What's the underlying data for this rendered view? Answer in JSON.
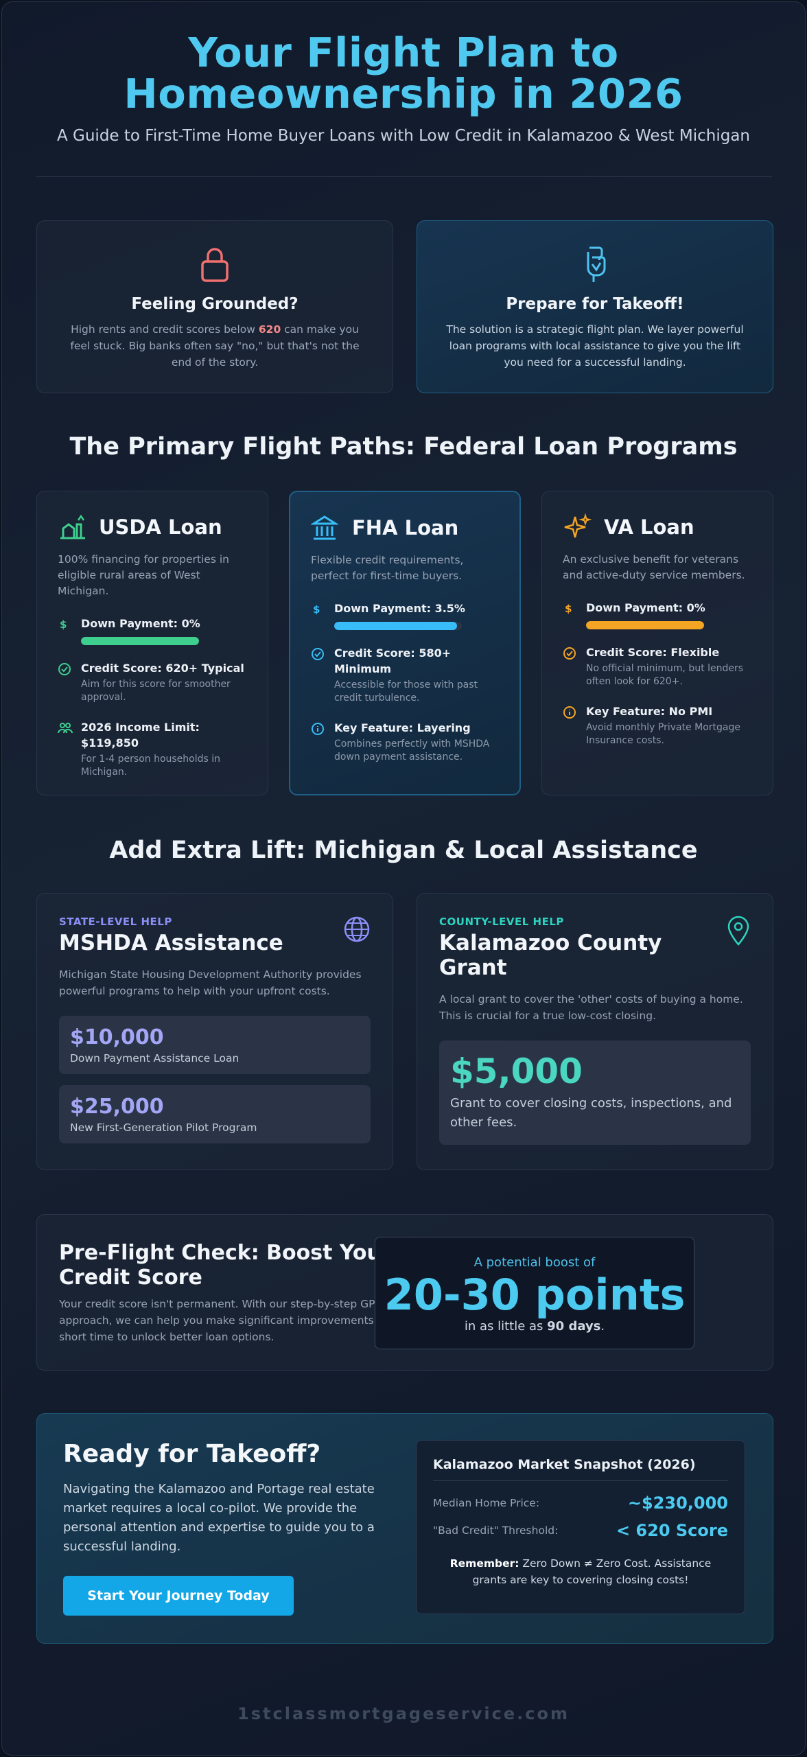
{
  "hero": {
    "title": "Your Flight Plan to Homeownership in 2026",
    "subtitle": "A Guide to First-Time Home Buyer Loans with Low Credit in Kalamazoo & West Michigan"
  },
  "intro": {
    "grounded": {
      "title": "Feeling Grounded?",
      "text_before": "High rents and credit scores below ",
      "highlight": "620",
      "text_after": " can make you feel stuck. Big banks often say \"no,\" but that's not the end of the story.",
      "icon": "lock-icon"
    },
    "takeoff": {
      "title": "Prepare for Takeoff!",
      "text": "The solution is a strategic flight plan. We layer powerful loan programs with local assistance to give you the lift you need for a successful landing.",
      "icon": "hand-icon"
    }
  },
  "federal": {
    "title": "The Primary Flight Paths: Federal Loan Programs",
    "usda": {
      "name": "USDA Loan",
      "desc": "100% financing for properties in eligible rural areas of West Michigan.",
      "color": "#3ecf8e",
      "down_payment": "Down Payment: 0%",
      "down_fill": 1.0,
      "credit_title": "Credit Score: 620+ Typical",
      "credit_sub": "Aim for this score for smoother approval.",
      "income_title": "2026 Income Limit: $119,850",
      "income_sub": "For 1-4 person households in Michigan."
    },
    "fha": {
      "name": "FHA Loan",
      "desc": "Flexible credit requirements, perfect for first-time buyers.",
      "color": "#38bdf8",
      "down_payment": "Down Payment: 3.5%",
      "down_fill": 0.965,
      "credit_title": "Credit Score: 580+ Minimum",
      "credit_sub": "Accessible for those with past credit turbulence.",
      "key_title": "Key Feature: Layering",
      "key_sub": "Combines perfectly with MSHDA down payment assistance."
    },
    "va": {
      "name": "VA Loan",
      "desc": "An exclusive benefit for veterans and active-duty service members.",
      "color": "#f5a524",
      "down_payment": "Down Payment: 0%",
      "down_fill": 1.0,
      "credit_title": "Credit Score: Flexible",
      "credit_sub": "No official minimum, but lenders often look for 620+.",
      "key_title": "Key Feature: No PMI",
      "key_sub": "Avoid monthly Private Mortgage Insurance costs."
    }
  },
  "assistance": {
    "title": "Add Extra Lift: Michigan & Local Assistance",
    "mshda": {
      "tag": "STATE-LEVEL HELP",
      "name": "MSHDA Assistance",
      "desc": "Michigan State Housing Development Authority provides powerful programs to help with your upfront costs.",
      "amount1": "$10,000",
      "label1": "Down Payment Assistance Loan",
      "amount2": "$25,000",
      "label2": "New First-Generation Pilot Program",
      "color": "#8b8ff5"
    },
    "county": {
      "tag": "COUNTY-LEVEL HELP",
      "name": "Kalamazoo County Grant",
      "desc": "A local grant to cover the 'other' costs of buying a home. This is crucial for a true low-cost closing.",
      "amount": "$5,000",
      "label": "Grant to cover closing costs, inspections, and other fees.",
      "color": "#2dd4bf"
    }
  },
  "credit": {
    "title": "Pre-Flight Check: Boost Your Credit Score",
    "desc": "Your credit score isn't permanent. With our step-by-step GPS approach, we can help you make significant improvements in a short time to unlock better loan options.",
    "boost_label": "A potential boost of",
    "boost_value": "20-30 points",
    "boost_pre": "in as little as ",
    "boost_days": "90 days",
    "boost_post": "."
  },
  "cta": {
    "title": "Ready for Takeoff?",
    "desc": "Navigating the Kalamazoo and Portage real estate market requires a local co-pilot. We provide the personal attention and expertise to guide you to a successful landing.",
    "button": "Start Your Journey Today",
    "snapshot": {
      "title": "Kalamazoo Market Snapshot (2026)",
      "median_label": "Median Home Price:",
      "median_value": "~$230,000",
      "bad_label": "\"Bad Credit\" Threshold:",
      "bad_value": "< 620 Score",
      "remember_bold": "Remember:",
      "remember_text": " Zero Down ≠ Zero Cost. Assistance grants are key to covering closing costs!"
    }
  },
  "footer": {
    "site": "1stclassmortgageservice.com"
  }
}
